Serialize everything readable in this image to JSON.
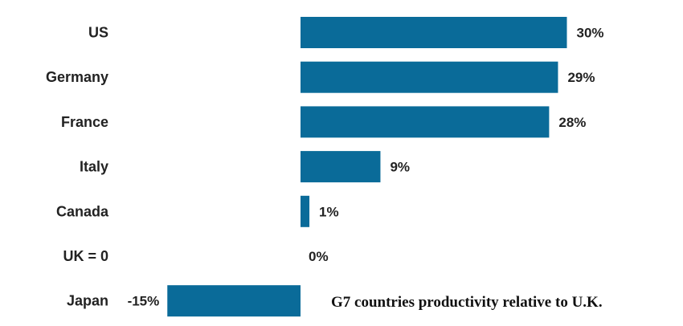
{
  "chart_data": {
    "type": "bar",
    "orientation": "horizontal",
    "title": "G7 countries productivity relative to U.K.",
    "categories": [
      "US",
      "Germany",
      "France",
      "Italy",
      "Canada",
      "UK = 0",
      "Japan"
    ],
    "values": [
      30,
      29,
      28,
      9,
      1,
      0,
      -15
    ],
    "value_labels": [
      "30%",
      "29%",
      "28%",
      "9%",
      "1%",
      "0%",
      "-15%"
    ],
    "unit": "%",
    "xlim": [
      -15,
      30
    ],
    "grid": false,
    "legend": "none",
    "bar_color": "#0a6b99"
  }
}
